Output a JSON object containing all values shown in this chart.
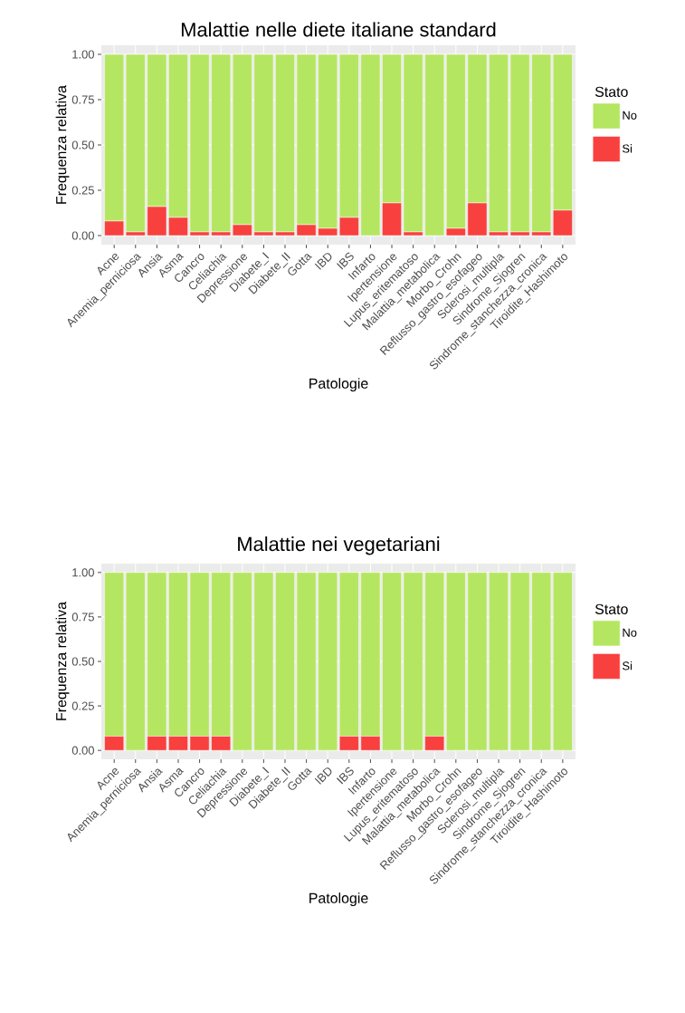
{
  "chart_data": [
    {
      "type": "bar",
      "title": "Malattie nelle diete italiane standard",
      "xlabel": "Patologie",
      "ylabel": "Frequenza relativa",
      "legend_title": "Stato",
      "stacked": true,
      "grid": true,
      "legend": "right",
      "categories": [
        "Acne",
        "Anemia_perniciosa",
        "Ansia",
        "Asma",
        "Cancro",
        "Celiachia",
        "Depressione",
        "Diabete_I",
        "Diabete_II",
        "Gotta",
        "IBD",
        "IBS",
        "Infarto",
        "Ipertensione",
        "Lupus_eritematoso",
        "Malattia_metabolica",
        "Morbo_Crohn",
        "Reflusso_gastro_esofageo",
        "Sclerosi_multipla",
        "Sindrome_Sjogren",
        "Sindrome_stanchezza_cronica",
        "Tiroidite_Hashimoto"
      ],
      "series": [
        {
          "name": "Si",
          "color": "#f8403f",
          "values": [
            0.08,
            0.02,
            0.16,
            0.1,
            0.02,
            0.02,
            0.06,
            0.02,
            0.02,
            0.06,
            0.04,
            0.1,
            0,
            0.18,
            0.02,
            0,
            0.04,
            0.18,
            0.02,
            0.02,
            0.02,
            0.14
          ]
        },
        {
          "name": "No",
          "color": "#b5e661",
          "values": [
            0.92,
            0.98,
            0.84,
            0.9,
            0.98,
            0.98,
            0.94,
            0.98,
            0.98,
            0.94,
            0.96,
            0.9,
            1,
            0.82,
            0.98,
            1,
            0.96,
            0.82,
            0.98,
            0.98,
            0.98,
            0.86
          ]
        }
      ],
      "ylim": [
        -0.05,
        1.05
      ],
      "yticks": [
        {
          "value": 0,
          "label": "0.00"
        },
        {
          "value": 0.25,
          "label": "0.25"
        },
        {
          "value": 0.5,
          "label": "0.50"
        },
        {
          "value": 0.75,
          "label": "0.75"
        },
        {
          "value": 1,
          "label": "1.00"
        }
      ]
    },
    {
      "type": "bar",
      "title": "Malattie nei vegetariani",
      "xlabel": "Patologie",
      "ylabel": "Frequenza relativa",
      "legend_title": "Stato",
      "stacked": true,
      "grid": true,
      "legend": "right",
      "categories": [
        "Acne",
        "Anemia_perniciosa",
        "Ansia",
        "Asma",
        "Cancro",
        "Celiachia",
        "Depressione",
        "Diabete_I",
        "Diabete_II",
        "Gotta",
        "IBD",
        "IBS",
        "Infarto",
        "Ipertensione",
        "Lupus_eritematoso",
        "Malattia_metabolica",
        "Morbo_Crohn",
        "Reflusso_gastro_esofageo",
        "Sclerosi_multipla",
        "Sindrome_Sjogren",
        "Sindrome_stanchezza_cronica",
        "Tiroidite_Hashimoto"
      ],
      "series": [
        {
          "name": "Si",
          "color": "#f8403f",
          "values": [
            0.08,
            0,
            0.08,
            0.08,
            0.08,
            0.08,
            0,
            0,
            0,
            0,
            0,
            0.08,
            0.08,
            0,
            0,
            0.08,
            0,
            0,
            0,
            0,
            0,
            0
          ]
        },
        {
          "name": "No",
          "color": "#b5e661",
          "values": [
            0.92,
            1,
            0.92,
            0.92,
            0.92,
            0.92,
            1,
            1,
            1,
            1,
            1,
            0.92,
            0.92,
            1,
            1,
            0.92,
            1,
            1,
            1,
            1,
            1,
            1
          ]
        }
      ],
      "ylim": [
        -0.05,
        1.05
      ],
      "yticks": [
        {
          "value": 0,
          "label": "0.00"
        },
        {
          "value": 0.25,
          "label": "0.25"
        },
        {
          "value": 0.5,
          "label": "0.50"
        },
        {
          "value": 0.75,
          "label": "0.75"
        },
        {
          "value": 1,
          "label": "1.00"
        }
      ]
    }
  ]
}
